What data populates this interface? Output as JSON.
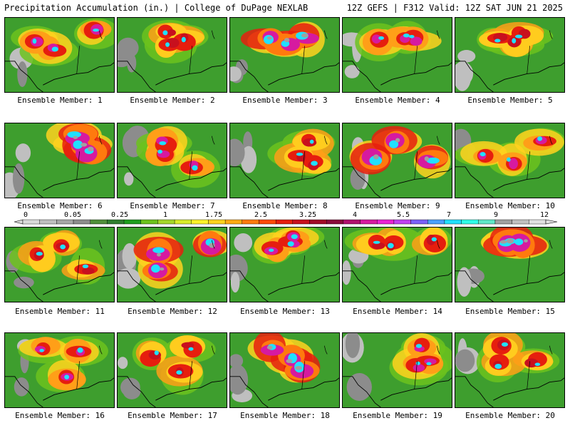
{
  "header": {
    "title": "Precipitation Accumulation (in.) | College of DuPage NEXLAB",
    "run_info": "12Z GEFS | F312 Valid: 12Z SAT JUN 21 2025"
  },
  "colorbar": {
    "labels": [
      "0",
      "0.05",
      "0.25",
      "1",
      "1.75",
      "2.5",
      "3.25",
      "4",
      "5.5",
      "7",
      "9",
      "12"
    ],
    "colors": [
      "#d9d9d9",
      "#bfbfbf",
      "#a6a6a6",
      "#8c8c8c",
      "#4f8f3a",
      "#2f7d2f",
      "#1e9e1e",
      "#6cc21d",
      "#a4d62a",
      "#d8ec2a",
      "#fff22a",
      "#ffd21e",
      "#ffaa14",
      "#ff7a0e",
      "#ff4a0a",
      "#e61e0e",
      "#c8101e",
      "#a00a28",
      "#8a0a3c",
      "#b0106e",
      "#d61aa0",
      "#ea22d2",
      "#c040f0",
      "#7a60f8",
      "#4aa0ff",
      "#20e0ff",
      "#30ffe8",
      "#60e8c8",
      "#a0a0a0",
      "#c0c0c0",
      "#e0e0e0"
    ]
  },
  "members": [
    {
      "label": "Ensemble Member: 1"
    },
    {
      "label": "Ensemble Member: 2"
    },
    {
      "label": "Ensemble Member: 3"
    },
    {
      "label": "Ensemble Member: 4"
    },
    {
      "label": "Ensemble Member: 5"
    },
    {
      "label": "Ensemble Member: 6"
    },
    {
      "label": "Ensemble Member: 7"
    },
    {
      "label": "Ensemble Member: 8"
    },
    {
      "label": "Ensemble Member: 9"
    },
    {
      "label": "Ensemble Member: 10"
    },
    {
      "label": "Ensemble Member: 11"
    },
    {
      "label": "Ensemble Member: 12"
    },
    {
      "label": "Ensemble Member: 13"
    },
    {
      "label": "Ensemble Member: 14"
    },
    {
      "label": "Ensemble Member: 15"
    },
    {
      "label": "Ensemble Member: 16"
    },
    {
      "label": "Ensemble Member: 17"
    },
    {
      "label": "Ensemble Member: 18"
    },
    {
      "label": "Ensemble Member: 19"
    },
    {
      "label": "Ensemble Member: 20"
    }
  ]
}
